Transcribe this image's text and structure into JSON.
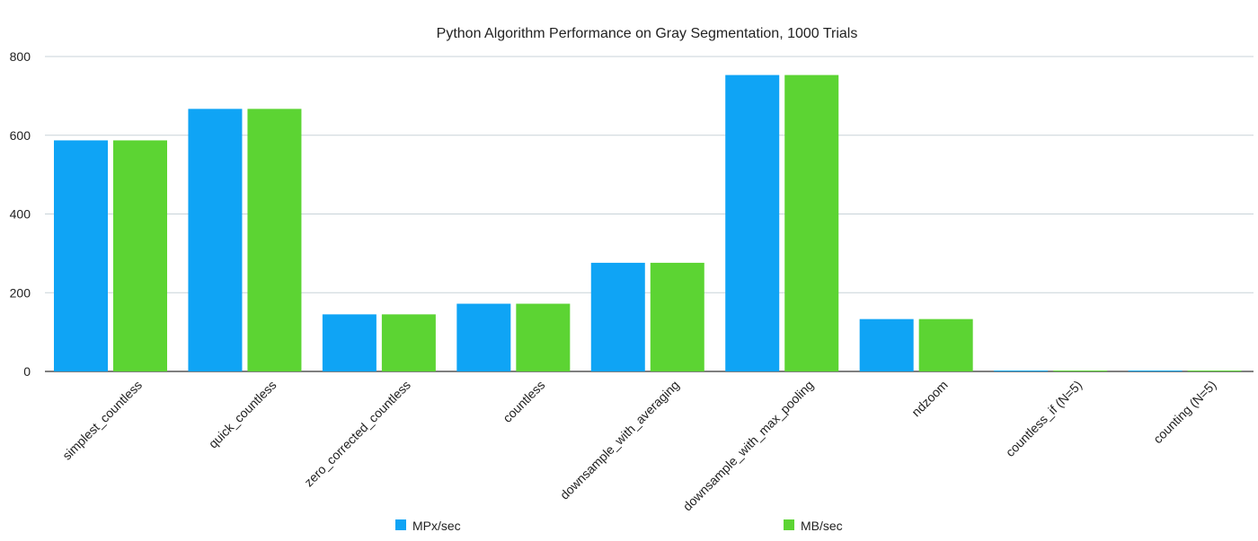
{
  "chart_data": {
    "type": "bar",
    "title": "Python Algorithm Performance on Gray Segmentation, 1000 Trials",
    "xlabel": "",
    "ylabel": "",
    "ylim": [
      0,
      800
    ],
    "yticks": [
      0,
      200,
      400,
      600,
      800
    ],
    "grid": true,
    "legend_position": "bottom",
    "categories": [
      "simplest_countless",
      "quick_countless",
      "zero_corrected_countless",
      "countless",
      "downsample_with_averaging",
      "downsample_with_max_pooling",
      "ndzoom",
      "countless_if (N=5)",
      "counting (N=5)"
    ],
    "series": [
      {
        "name": "MPx/sec",
        "color": "#0fa4f5",
        "values": [
          587,
          667,
          145,
          172,
          276,
          753,
          133,
          2,
          0.5
        ]
      },
      {
        "name": "MB/sec",
        "color": "#5cd433",
        "values": [
          587,
          667,
          145,
          172,
          276,
          753,
          133,
          2,
          0.5
        ]
      }
    ]
  }
}
